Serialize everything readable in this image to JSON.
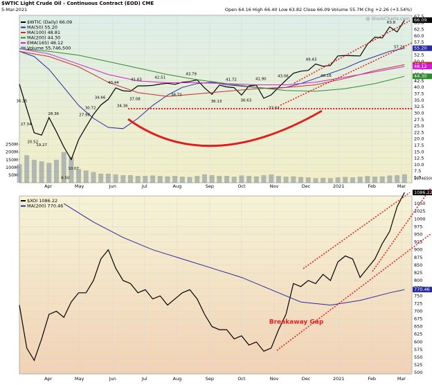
{
  "chart_data": [
    {
      "type": "line",
      "title": "$WTIC Light Crude Oil - Continuous Contract (EOD) CME",
      "date": "5-Mar-2021",
      "quote": "Open 64.16 High 66.40 Low 63.82 Close 66.09 Volume 55.7M Chg +2.26 (+3.54%)",
      "watermark": "@ StockCharts.com",
      "xlim": [
        0,
        53
      ],
      "xticks": [
        {
          "value": 3.9,
          "label": "Apr"
        },
        {
          "value": 8.1,
          "label": "May"
        },
        {
          "value": 12.6,
          "label": "Jun"
        },
        {
          "value": 16.9,
          "label": "Jul"
        },
        {
          "value": 21.3,
          "label": "Aug"
        },
        {
          "value": 25.7,
          "label": "Sep"
        },
        {
          "value": 30,
          "label": "Oct"
        },
        {
          "value": 34.4,
          "label": "Nov"
        },
        {
          "value": 38.7,
          "label": "Dec"
        },
        {
          "value": 43.1,
          "label": "2021"
        },
        {
          "value": 47.6,
          "label": "Feb"
        },
        {
          "value": 51.6,
          "label": "Mar"
        }
      ],
      "ylim": [
        3,
        68
      ],
      "yticks": [
        {
          "value": 5,
          "label": "5.0"
        },
        7.5,
        {
          "value": 10,
          "label": "10.0"
        },
        12.5,
        {
          "value": 15,
          "label": "15.0"
        },
        17.5,
        {
          "value": 20,
          "label": "20.0"
        },
        22.5,
        {
          "value": 25,
          "label": "25.0"
        },
        27.5,
        {
          "value": 30,
          "label": "30.0"
        },
        32.5,
        {
          "value": 35,
          "label": "35.0"
        },
        37.5,
        {
          "value": 40,
          "label": "40.0"
        },
        42.5,
        {
          "value": 45,
          "label": "45.0"
        },
        47.5,
        {
          "value": 50,
          "label": "50.0"
        },
        52.5,
        {
          "value": 55,
          "label": "55.0"
        },
        57.5,
        {
          "value": 60,
          "label": "60.0"
        },
        62.5,
        {
          "value": 65,
          "label": "65.0"
        },
        67.5
      ],
      "grid": true,
      "series": [
        {
          "name": "$WTIC (Daily)",
          "tag": "66.09",
          "color": "#000000",
          "x": [
            0,
            1,
            2,
            3,
            4,
            5,
            6,
            7,
            8,
            9,
            10,
            11,
            12,
            13,
            14,
            15,
            16,
            17,
            18,
            19,
            20,
            21,
            22,
            23,
            24,
            25,
            26,
            27,
            28,
            29,
            30,
            31,
            32,
            33,
            34,
            35,
            36,
            37,
            38,
            39,
            40,
            41,
            42,
            43,
            44,
            45,
            46,
            47,
            48,
            49,
            50,
            51,
            52
          ],
          "values": [
            41.3,
            31.7,
            22.4,
            21.5,
            28.3,
            22.8,
            16.9,
            12.0,
            19.8,
            24.7,
            29.5,
            33.2,
            35.4,
            39.8,
            38.7,
            38.5,
            40.6,
            40.6,
            40.8,
            41.3,
            41.6,
            41.2,
            42.0,
            42.3,
            42.9,
            39.8,
            37.3,
            40.9,
            40.2,
            39.9,
            37.0,
            40.6,
            40.9,
            35.8,
            37.1,
            40.0,
            42.8,
            45.5,
            46.3,
            46.6,
            49.1,
            48.2,
            48.5,
            52.2,
            52.4,
            52.3,
            52.2,
            56.8,
            59.5,
            59.2,
            63.5,
            61.5,
            66.09
          ]
        },
        {
          "name": "MA(50)",
          "tag": "55.20",
          "color": "#2a2aa0",
          "x": [
            0,
            2,
            4,
            6,
            8,
            10,
            12,
            14,
            16,
            18,
            20,
            22,
            24,
            26,
            28,
            30,
            32,
            34,
            36,
            38,
            40,
            42,
            44,
            46,
            48,
            50,
            52
          ],
          "values": [
            54,
            52,
            47,
            40,
            33,
            28,
            24.5,
            24,
            28,
            33,
            37,
            40,
            41.5,
            42,
            41,
            40.5,
            40,
            39.5,
            40,
            41.5,
            43.5,
            45.5,
            47.5,
            50,
            52,
            54,
            55.2
          ]
        },
        {
          "name": "MA(100)",
          "tag": "48.81",
          "color": "#c03030",
          "x": [
            0,
            4,
            8,
            12,
            16,
            20,
            24,
            28,
            32,
            36,
            40,
            44,
            48,
            52
          ],
          "values": [
            54,
            52,
            48,
            42,
            38,
            36.5,
            37.5,
            38.5,
            39.5,
            40,
            41,
            43.5,
            46.5,
            48.81
          ]
        },
        {
          "name": "MA(200)",
          "tag": "44.30",
          "color": "#2e8b2e",
          "x": [
            0,
            4,
            8,
            12,
            16,
            20,
            24,
            28,
            32,
            36,
            40,
            44,
            48,
            52
          ],
          "values": [
            55,
            54,
            52.5,
            50,
            47.5,
            45,
            43,
            41.5,
            40,
            38.8,
            38.5,
            39.5,
            41.5,
            44.3
          ]
        },
        {
          "name": "EMA(165)",
          "tag": "48.12",
          "color": "#d020d0",
          "x": [
            0,
            4,
            8,
            12,
            16,
            20,
            24,
            28,
            32,
            36,
            40,
            44,
            48,
            52
          ],
          "values": [
            55,
            53,
            49,
            45,
            42.5,
            41.8,
            41.8,
            41.5,
            41,
            41,
            42,
            44,
            46,
            48.12
          ]
        }
      ],
      "volume": {
        "name": "Volume",
        "legend_value": "55,746,500",
        "tag": "55746500",
        "color": "#7a8aa0",
        "vlim": [
          0,
          280
        ],
        "vticks": [
          {
            "value": 50,
            "label": "50M"
          },
          {
            "value": 100,
            "label": "100M"
          },
          {
            "value": 150,
            "label": "150M"
          },
          {
            "value": 200,
            "label": "200M"
          },
          {
            "value": 250,
            "label": "250M"
          }
        ],
        "values": [
          120,
          180,
          150,
          140,
          130,
          150,
          200,
          170,
          90,
          80,
          70,
          60,
          60,
          55,
          50,
          50,
          45,
          45,
          48,
          45,
          42,
          45,
          40,
          38,
          45,
          55,
          50,
          45,
          45,
          40,
          48,
          45,
          42,
          50,
          55,
          45,
          40,
          42,
          38,
          35,
          30,
          32,
          30,
          35,
          38,
          35,
          40,
          45,
          40,
          42,
          48,
          50,
          55.7
        ]
      },
      "annotations": [
        {
          "x": 0.3,
          "value": 36.35,
          "label": "36.35"
        },
        {
          "x": 0.9,
          "value": 27.34,
          "label": "27.34"
        },
        {
          "x": 1.8,
          "value": 20.52,
          "label": "20.52"
        },
        {
          "x": 3.0,
          "value": 19.27,
          "label": "19.27"
        },
        {
          "x": 4.6,
          "value": 28.36,
          "label": "28.36"
        },
        {
          "x": 6.2,
          "value": 6.5,
          "label": "6.50"
        },
        {
          "x": 7.3,
          "value": 10.07,
          "label": "10.07"
        },
        {
          "x": 8.8,
          "value": 27.98,
          "label": "27.98"
        },
        {
          "x": 9.6,
          "value": 30.72,
          "label": "30.72"
        },
        {
          "x": 10.9,
          "value": 34.66,
          "label": "34.66"
        },
        {
          "x": 12.7,
          "value": 40.44,
          "label": "40.44"
        },
        {
          "x": 13.9,
          "value": 34.36,
          "label": "34.36"
        },
        {
          "x": 15.6,
          "value": 37.08,
          "label": "37.08"
        },
        {
          "x": 15.8,
          "value": 41.63,
          "label": "41.63"
        },
        {
          "x": 19.0,
          "value": 42.51,
          "label": "42.51"
        },
        {
          "x": 21.2,
          "value": 38.72,
          "label": "38.72"
        },
        {
          "x": 23.2,
          "value": 43.79,
          "label": "43.79"
        },
        {
          "x": 26.6,
          "value": 36.13,
          "label": "36.13"
        },
        {
          "x": 28.6,
          "value": 41.72,
          "label": "41.72"
        },
        {
          "x": 30.6,
          "value": 36.63,
          "label": "36.63"
        },
        {
          "x": 32.6,
          "value": 41.9,
          "label": "41.90"
        },
        {
          "x": 34.4,
          "value": 33.64,
          "label": "33.64"
        },
        {
          "x": 35.6,
          "value": 43.06,
          "label": "43.06"
        },
        {
          "x": 39.4,
          "value": 49.43,
          "label": "49.43"
        },
        {
          "x": 41.4,
          "value": 46.16,
          "label": "46.16"
        },
        {
          "x": 50.2,
          "value": 63.8,
          "label": "63.8"
        },
        {
          "x": 51.3,
          "value": 57.24,
          "label": "57.24"
        }
      ]
    },
    {
      "type": "line",
      "xlim": [
        0,
        53
      ],
      "xticks": [
        {
          "value": 3.9,
          "label": "Apr"
        },
        {
          "value": 8.1,
          "label": "May"
        },
        {
          "value": 12.6,
          "label": "Jun"
        },
        {
          "value": 16.9,
          "label": "Jul"
        },
        {
          "value": 21.3,
          "label": "Aug"
        },
        {
          "value": 25.7,
          "label": "Sep"
        },
        {
          "value": 30,
          "label": "Oct"
        },
        {
          "value": 34.4,
          "label": "Nov"
        },
        {
          "value": 38.7,
          "label": "Dec"
        },
        {
          "value": 43.1,
          "label": "2021"
        },
        {
          "value": 47.6,
          "label": "Feb"
        },
        {
          "value": 51.6,
          "label": "Mar"
        }
      ],
      "ylim": [
        496,
        1075
      ],
      "yticks": [
        500,
        525,
        550,
        575,
        600,
        625,
        650,
        675,
        700,
        725,
        750,
        775,
        800,
        825,
        850,
        875,
        900,
        925,
        950,
        975,
        1000,
        1025,
        1050
      ],
      "grid": true,
      "series": [
        {
          "name": "$XOI",
          "tag": "1086.22",
          "color": "#000000",
          "x": [
            0,
            1,
            2,
            3,
            4,
            5,
            6,
            7,
            8,
            9,
            10,
            11,
            12,
            13,
            14,
            15,
            16,
            17,
            18,
            19,
            20,
            21,
            22,
            23,
            24,
            25,
            26,
            27,
            28,
            29,
            30,
            31,
            32,
            33,
            34,
            35,
            36,
            37,
            38,
            39,
            40,
            41,
            42,
            43,
            44,
            45,
            46,
            47,
            48,
            49,
            50,
            51,
            52
          ],
          "values": [
            720,
            580,
            540,
            610,
            690,
            700,
            680,
            730,
            760,
            760,
            800,
            870,
            900,
            840,
            800,
            790,
            760,
            770,
            740,
            750,
            720,
            740,
            760,
            770,
            740,
            690,
            650,
            640,
            640,
            610,
            620,
            590,
            600,
            570,
            580,
            640,
            690,
            790,
            780,
            800,
            790,
            820,
            800,
            860,
            880,
            870,
            810,
            840,
            870,
            920,
            960,
            1040,
            1086.22
          ]
        },
        {
          "name": "MA(200)",
          "tag": "770.46",
          "color": "#2a2aa0",
          "x": [
            6,
            10,
            14,
            18,
            22,
            26,
            30,
            34,
            38,
            42,
            46,
            50,
            52
          ],
          "values": [
            1050,
            990,
            940,
            900,
            870,
            840,
            810,
            770,
            730,
            720,
            735,
            760,
            770.46
          ]
        }
      ],
      "annotation": "Breakaway Gap"
    }
  ]
}
